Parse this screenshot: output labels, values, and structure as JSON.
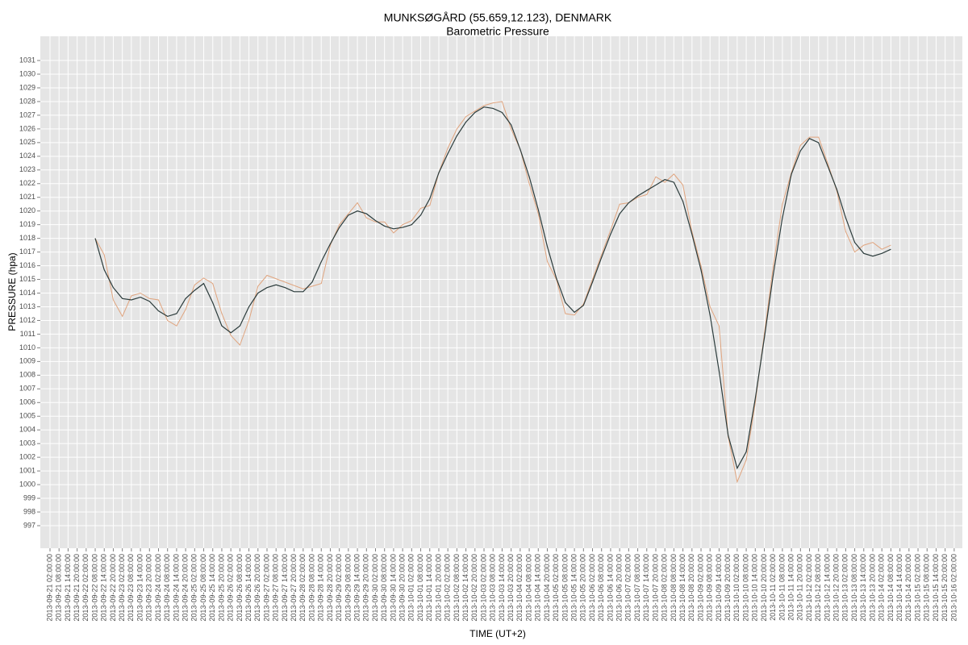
{
  "chart_data": {
    "type": "line",
    "title": "MUNKSØGÅRD (55.659,12.123), DENMARK",
    "subtitle": "Barometric Pressure",
    "x_label": "TIME (UT+2)",
    "y_label": "PRESSURE (hpa)",
    "grid": true,
    "xlim": [
      "2013-09-20 19:35:00",
      "2013-10-16 07:25:00"
    ],
    "ylim": [
      995.35,
      1032.77
    ],
    "yticks": [
      997,
      998,
      999,
      1000,
      1001,
      1002,
      1003,
      1004,
      1005,
      1006,
      1007,
      1008,
      1009,
      1010,
      1011,
      1012,
      1013,
      1014,
      1015,
      1016,
      1017,
      1018,
      1019,
      1020,
      1021,
      1022,
      1023,
      1024,
      1025,
      1026,
      1027,
      1028,
      1029,
      1030,
      1031
    ],
    "xticks": [
      "2013-09-21 02:00:00",
      "2013-09-21 08:00:00",
      "2013-09-21 14:00:00",
      "2013-09-21 20:00:00",
      "2013-09-22 02:00:00",
      "2013-09-22 08:00:00",
      "2013-09-22 14:00:00",
      "2013-09-22 20:00:00",
      "2013-09-23 02:00:00",
      "2013-09-23 08:00:00",
      "2013-09-23 14:00:00",
      "2013-09-23 20:00:00",
      "2013-09-24 02:00:00",
      "2013-09-24 08:00:00",
      "2013-09-24 14:00:00",
      "2013-09-24 20:00:00",
      "2013-09-25 02:00:00",
      "2013-09-25 08:00:00",
      "2013-09-25 14:00:00",
      "2013-09-25 20:00:00",
      "2013-09-26 02:00:00",
      "2013-09-26 08:00:00",
      "2013-09-26 14:00:00",
      "2013-09-26 20:00:00",
      "2013-09-27 02:00:00",
      "2013-09-27 08:00:00",
      "2013-09-27 14:00:00",
      "2013-09-27 20:00:00",
      "2013-09-28 02:00:00",
      "2013-09-28 08:00:00",
      "2013-09-28 14:00:00",
      "2013-09-28 20:00:00",
      "2013-09-29 02:00:00",
      "2013-09-29 08:00:00",
      "2013-09-29 14:00:00",
      "2013-09-29 20:00:00",
      "2013-09-30 02:00:00",
      "2013-09-30 08:00:00",
      "2013-09-30 14:00:00",
      "2013-09-30 20:00:00",
      "2013-10-01 02:00:00",
      "2013-10-01 08:00:00",
      "2013-10-01 14:00:00",
      "2013-10-01 20:00:00",
      "2013-10-02 02:00:00",
      "2013-10-02 08:00:00",
      "2013-10-02 14:00:00",
      "2013-10-02 20:00:00",
      "2013-10-03 02:00:00",
      "2013-10-03 08:00:00",
      "2013-10-03 14:00:00",
      "2013-10-03 20:00:00",
      "2013-10-04 02:00:00",
      "2013-10-04 08:00:00",
      "2013-10-04 14:00:00",
      "2013-10-04 20:00:00",
      "2013-10-05 02:00:00",
      "2013-10-05 08:00:00",
      "2013-10-05 14:00:00",
      "2013-10-05 20:00:00",
      "2013-10-06 02:00:00",
      "2013-10-06 08:00:00",
      "2013-10-06 14:00:00",
      "2013-10-06 20:00:00",
      "2013-10-07 02:00:00",
      "2013-10-07 08:00:00",
      "2013-10-07 14:00:00",
      "2013-10-07 20:00:00",
      "2013-10-08 02:00:00",
      "2013-10-08 08:00:00",
      "2013-10-08 14:00:00",
      "2013-10-08 20:00:00",
      "2013-10-09 02:00:00",
      "2013-10-09 08:00:00",
      "2013-10-09 14:00:00",
      "2013-10-09 20:00:00",
      "2013-10-10 02:00:00",
      "2013-10-10 08:00:00",
      "2013-10-10 14:00:00",
      "2013-10-10 20:00:00",
      "2013-10-11 02:00:00",
      "2013-10-11 08:00:00",
      "2013-10-11 14:00:00",
      "2013-10-11 20:00:00",
      "2013-10-12 02:00:00",
      "2013-10-12 08:00:00",
      "2013-10-12 14:00:00",
      "2013-10-12 20:00:00",
      "2013-10-13 02:00:00",
      "2013-10-13 08:00:00",
      "2013-10-13 14:00:00",
      "2013-10-13 20:00:00",
      "2013-10-14 02:00:00",
      "2013-10-14 08:00:00",
      "2013-10-14 14:00:00",
      "2013-10-14 20:00:00",
      "2013-10-15 02:00:00",
      "2013-10-15 08:00:00",
      "2013-10-15 14:00:00",
      "2013-10-15 20:00:00",
      "2013-10-16 02:00:00"
    ],
    "series": [
      {
        "color": "#e0a47e",
        "width": 1,
        "x": [
          "2013-09-22 08:00:00",
          "2013-09-22 14:00:00",
          "2013-09-22 20:00:00",
          "2013-09-23 02:00:00",
          "2013-09-23 08:00:00",
          "2013-09-23 14:00:00",
          "2013-09-23 20:00:00",
          "2013-09-24 02:00:00",
          "2013-09-24 08:00:00",
          "2013-09-24 14:00:00",
          "2013-09-24 20:00:00",
          "2013-09-25 02:00:00",
          "2013-09-25 08:00:00",
          "2013-09-25 14:00:00",
          "2013-09-25 20:00:00",
          "2013-09-26 02:00:00",
          "2013-09-26 08:00:00",
          "2013-09-26 14:00:00",
          "2013-09-26 20:00:00",
          "2013-09-27 02:00:00",
          "2013-09-28 02:00:00",
          "2013-09-28 08:00:00",
          "2013-09-28 14:00:00",
          "2013-09-28 20:00:00",
          "2013-09-29 02:00:00",
          "2013-09-29 08:00:00",
          "2013-09-29 14:00:00",
          "2013-09-29 20:00:00",
          "2013-09-30 02:00:00",
          "2013-09-30 08:00:00",
          "2013-09-30 14:00:00",
          "2013-09-30 20:00:00",
          "2013-10-01 02:00:00",
          "2013-10-01 08:00:00",
          "2013-10-01 14:00:00",
          "2013-10-01 20:00:00",
          "2013-10-02 02:00:00",
          "2013-10-02 08:00:00",
          "2013-10-02 14:00:00",
          "2013-10-02 20:00:00",
          "2013-10-03 02:00:00",
          "2013-10-03 08:00:00",
          "2013-10-03 14:00:00",
          "2013-10-03 20:00:00",
          "2013-10-04 02:00:00",
          "2013-10-04 08:00:00",
          "2013-10-04 14:00:00",
          "2013-10-04 20:00:00",
          "2013-10-05 02:00:00",
          "2013-10-05 08:00:00",
          "2013-10-05 14:00:00",
          "2013-10-05 20:00:00",
          "2013-10-06 02:00:00",
          "2013-10-06 08:00:00",
          "2013-10-06 14:00:00",
          "2013-10-06 20:00:00",
          "2013-10-07 02:00:00",
          "2013-10-07 08:00:00",
          "2013-10-07 14:00:00",
          "2013-10-07 20:00:00",
          "2013-10-08 02:00:00",
          "2013-10-08 08:00:00",
          "2013-10-08 14:00:00",
          "2013-10-08 20:00:00",
          "2013-10-09 02:00:00",
          "2013-10-09 08:00:00",
          "2013-10-09 14:00:00",
          "2013-10-09 20:00:00",
          "2013-10-10 02:00:00",
          "2013-10-10 08:00:00",
          "2013-10-10 14:00:00",
          "2013-10-10 20:00:00",
          "2013-10-11 02:00:00",
          "2013-10-11 08:00:00",
          "2013-10-11 14:00:00",
          "2013-10-11 20:00:00",
          "2013-10-12 02:00:00",
          "2013-10-12 08:00:00",
          "2013-10-12 14:00:00",
          "2013-10-12 20:00:00",
          "2013-10-13 02:00:00",
          "2013-10-13 08:00:00",
          "2013-10-13 14:00:00",
          "2013-10-13 20:00:00",
          "2013-10-14 02:00:00",
          "2013-10-14 08:00:00"
        ],
        "values": [
          1018.0,
          1016.8,
          1013.5,
          1012.3,
          1013.8,
          1014.0,
          1013.6,
          1013.5,
          1012.0,
          1011.6,
          1012.8,
          1014.6,
          1015.1,
          1014.7,
          1012.5,
          1010.9,
          1010.2,
          1012.0,
          1014.5,
          1015.3,
          1014.3,
          1014.5,
          1014.7,
          1017.5,
          1019.0,
          1019.8,
          1020.6,
          1019.5,
          1019.2,
          1019.2,
          1018.4,
          1019.0,
          1019.3,
          1020.2,
          1020.4,
          1022.8,
          1024.6,
          1026.0,
          1026.9,
          1027.3,
          1027.7,
          1027.9,
          1028.0,
          1026.0,
          1024.5,
          1022.0,
          1019.8,
          1016.3,
          1015.0,
          1012.5,
          1012.4,
          1013.2,
          1015.0,
          1016.8,
          1018.6,
          1020.5,
          1020.6,
          1021.0,
          1021.2,
          1022.5,
          1022.1,
          1022.7,
          1021.9,
          1018.5,
          1016.0,
          1013.0,
          1011.6,
          1003.5,
          1000.2,
          1001.8,
          1006.0,
          1011.0,
          1016.0,
          1020.5,
          1022.8,
          1024.8,
          1025.4,
          1025.4,
          1023.5,
          1021.5,
          1018.5,
          1017.0,
          1017.5,
          1017.7,
          1017.2,
          1017.5
        ]
      },
      {
        "color": "#2b3b3b",
        "width": 1.2,
        "x": [
          "2013-09-22 08:00:00",
          "2013-09-22 14:00:00",
          "2013-09-22 20:00:00",
          "2013-09-23 02:00:00",
          "2013-09-23 08:00:00",
          "2013-09-23 14:00:00",
          "2013-09-23 20:00:00",
          "2013-09-24 02:00:00",
          "2013-09-24 08:00:00",
          "2013-09-24 14:00:00",
          "2013-09-24 20:00:00",
          "2013-09-25 02:00:00",
          "2013-09-25 08:00:00",
          "2013-09-25 14:00:00",
          "2013-09-25 20:00:00",
          "2013-09-26 02:00:00",
          "2013-09-26 08:00:00",
          "2013-09-26 14:00:00",
          "2013-09-26 20:00:00",
          "2013-09-27 02:00:00",
          "2013-09-27 08:00:00",
          "2013-09-27 14:00:00",
          "2013-09-27 20:00:00",
          "2013-09-28 02:00:00",
          "2013-09-28 08:00:00",
          "2013-09-28 14:00:00",
          "2013-09-28 20:00:00",
          "2013-09-29 02:00:00",
          "2013-09-29 08:00:00",
          "2013-09-29 14:00:00",
          "2013-09-29 20:00:00",
          "2013-09-30 02:00:00",
          "2013-09-30 08:00:00",
          "2013-09-30 14:00:00",
          "2013-09-30 20:00:00",
          "2013-10-01 02:00:00",
          "2013-10-01 08:00:00",
          "2013-10-01 14:00:00",
          "2013-10-01 20:00:00",
          "2013-10-02 02:00:00",
          "2013-10-02 08:00:00",
          "2013-10-02 14:00:00",
          "2013-10-02 20:00:00",
          "2013-10-03 02:00:00",
          "2013-10-03 08:00:00",
          "2013-10-03 14:00:00",
          "2013-10-03 20:00:00",
          "2013-10-04 02:00:00",
          "2013-10-04 08:00:00",
          "2013-10-04 14:00:00",
          "2013-10-04 20:00:00",
          "2013-10-05 02:00:00",
          "2013-10-05 08:00:00",
          "2013-10-05 14:00:00",
          "2013-10-05 20:00:00",
          "2013-10-06 02:00:00",
          "2013-10-06 08:00:00",
          "2013-10-06 14:00:00",
          "2013-10-06 20:00:00",
          "2013-10-07 02:00:00",
          "2013-10-07 08:00:00",
          "2013-10-07 14:00:00",
          "2013-10-07 20:00:00",
          "2013-10-08 02:00:00",
          "2013-10-08 08:00:00",
          "2013-10-08 14:00:00",
          "2013-10-08 20:00:00",
          "2013-10-09 02:00:00",
          "2013-10-09 08:00:00",
          "2013-10-09 14:00:00",
          "2013-10-09 20:00:00",
          "2013-10-10 02:00:00",
          "2013-10-10 08:00:00",
          "2013-10-10 14:00:00",
          "2013-10-10 20:00:00",
          "2013-10-11 02:00:00",
          "2013-10-11 08:00:00",
          "2013-10-11 14:00:00",
          "2013-10-11 20:00:00",
          "2013-10-12 02:00:00",
          "2013-10-12 08:00:00",
          "2013-10-12 14:00:00",
          "2013-10-12 20:00:00",
          "2013-10-13 02:00:00",
          "2013-10-13 08:00:00",
          "2013-10-13 14:00:00",
          "2013-10-13 20:00:00",
          "2013-10-14 02:00:00",
          "2013-10-14 08:00:00"
        ],
        "values": [
          1018.0,
          1015.7,
          1014.4,
          1013.6,
          1013.5,
          1013.7,
          1013.4,
          1012.7,
          1012.3,
          1012.5,
          1013.6,
          1014.2,
          1014.7,
          1013.3,
          1011.6,
          1011.1,
          1011.6,
          1013.0,
          1014.0,
          1014.4,
          1014.6,
          1014.4,
          1014.1,
          1014.1,
          1014.8,
          1016.3,
          1017.6,
          1018.8,
          1019.7,
          1020.0,
          1019.8,
          1019.3,
          1018.9,
          1018.7,
          1018.8,
          1019.0,
          1019.7,
          1020.9,
          1022.8,
          1024.2,
          1025.5,
          1026.5,
          1027.2,
          1027.6,
          1027.5,
          1027.2,
          1026.3,
          1024.5,
          1022.5,
          1020.1,
          1017.4,
          1015.1,
          1013.3,
          1012.6,
          1013.1,
          1014.8,
          1016.6,
          1018.3,
          1019.8,
          1020.6,
          1021.1,
          1021.5,
          1021.9,
          1022.3,
          1022.1,
          1020.7,
          1018.3,
          1015.7,
          1012.4,
          1008.3,
          1003.6,
          1001.2,
          1002.4,
          1006.3,
          1010.7,
          1015.4,
          1019.5,
          1022.7,
          1024.4,
          1025.3,
          1025.0,
          1023.3,
          1021.6,
          1019.5,
          1017.7,
          1016.9,
          1016.7,
          1016.9,
          1017.2
        ]
      }
    ]
  }
}
